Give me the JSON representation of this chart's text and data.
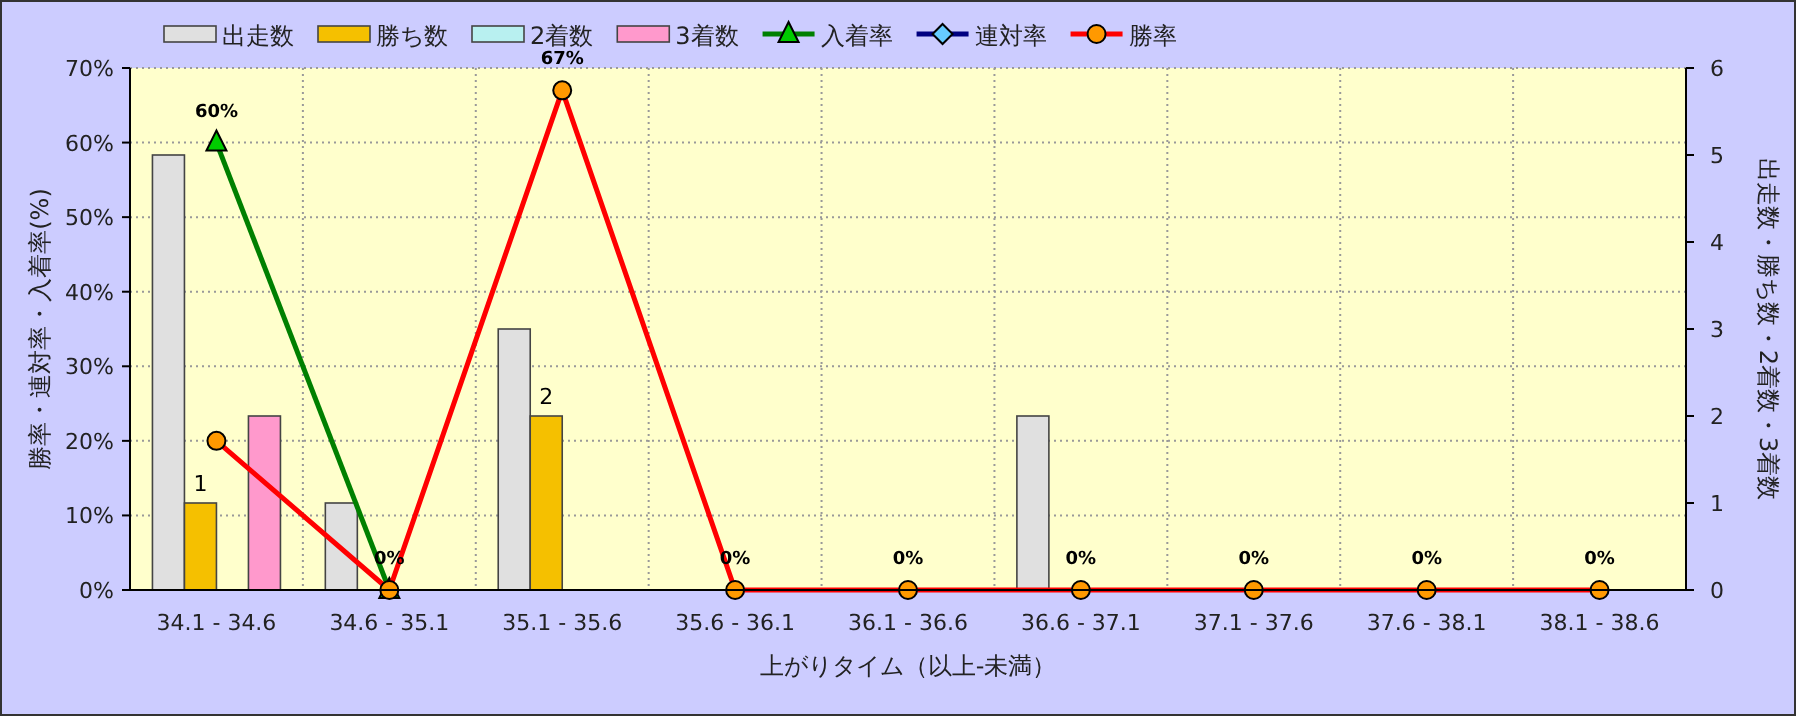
{
  "chart_data": {
    "type": "bar",
    "xlabel": "上がりタイム（以上-未満）",
    "ylabel": "勝率・連対率・入着率(%)",
    "y2label": "出走数・勝ち数・2着数・3着数",
    "categories": [
      "34.1 - 34.6",
      "34.6 - 35.1",
      "35.1 - 35.6",
      "35.6 - 36.1",
      "36.1 - 36.6",
      "36.6 - 37.1",
      "37.1 - 37.6",
      "37.6 - 38.1",
      "38.1 - 38.6"
    ],
    "series": [
      {
        "name": "出走数",
        "axis": "y2",
        "color": "#e0e0e0",
        "values": [
          5,
          1,
          3,
          0,
          0,
          2,
          0,
          0,
          0
        ]
      },
      {
        "name": "勝ち数",
        "axis": "y2",
        "color": "#f5c000",
        "values": [
          1,
          0,
          2,
          0,
          0,
          0,
          0,
          0,
          0
        ],
        "value_labels": [
          "1",
          null,
          "2",
          null,
          null,
          null,
          null,
          null,
          null
        ]
      },
      {
        "name": "2着数",
        "axis": "y2",
        "color": "#b8f0f0",
        "values": [
          0,
          0,
          0,
          0,
          0,
          0,
          0,
          0,
          0
        ]
      },
      {
        "name": "3着数",
        "axis": "y2",
        "color": "#ff99cc",
        "values": [
          2,
          0,
          0,
          0,
          0,
          0,
          0,
          0,
          0
        ]
      },
      {
        "name": "入着率",
        "type": "line",
        "marker": "triangle",
        "color": "#008000",
        "values": [
          60,
          0,
          null,
          null,
          null,
          null,
          null,
          null,
          null
        ],
        "value_labels": [
          "60%",
          null,
          null,
          null,
          null,
          null,
          null,
          null,
          null
        ]
      },
      {
        "name": "連対率",
        "type": "line",
        "marker": "diamond",
        "color": "#000080",
        "values": [
          null,
          null,
          null,
          null,
          null,
          null,
          null,
          null,
          null
        ]
      },
      {
        "name": "勝率",
        "type": "line",
        "marker": "circle",
        "color": "#ff0000",
        "values": [
          20,
          0,
          67,
          0,
          0,
          0,
          0,
          0,
          0
        ],
        "value_labels": [
          null,
          "0%",
          "67%",
          "0%",
          "0%",
          "0%",
          "0%",
          "0%",
          "0%"
        ]
      }
    ],
    "ylim": [
      0,
      70
    ],
    "yticks": [
      {
        "value": 0,
        "label": "0%"
      },
      {
        "value": 10,
        "label": "10%"
      },
      {
        "value": 20,
        "label": "20%"
      },
      {
        "value": 30,
        "label": "30%"
      },
      {
        "value": 40,
        "label": "40%"
      },
      {
        "value": 50,
        "label": "50%"
      },
      {
        "value": 60,
        "label": "60%"
      },
      {
        "value": 70,
        "label": "70%"
      }
    ],
    "y2lim": [
      0,
      6
    ],
    "y2ticks": [
      0,
      1,
      2,
      3,
      4,
      5,
      6
    ],
    "grid": true,
    "legend": "top left"
  }
}
